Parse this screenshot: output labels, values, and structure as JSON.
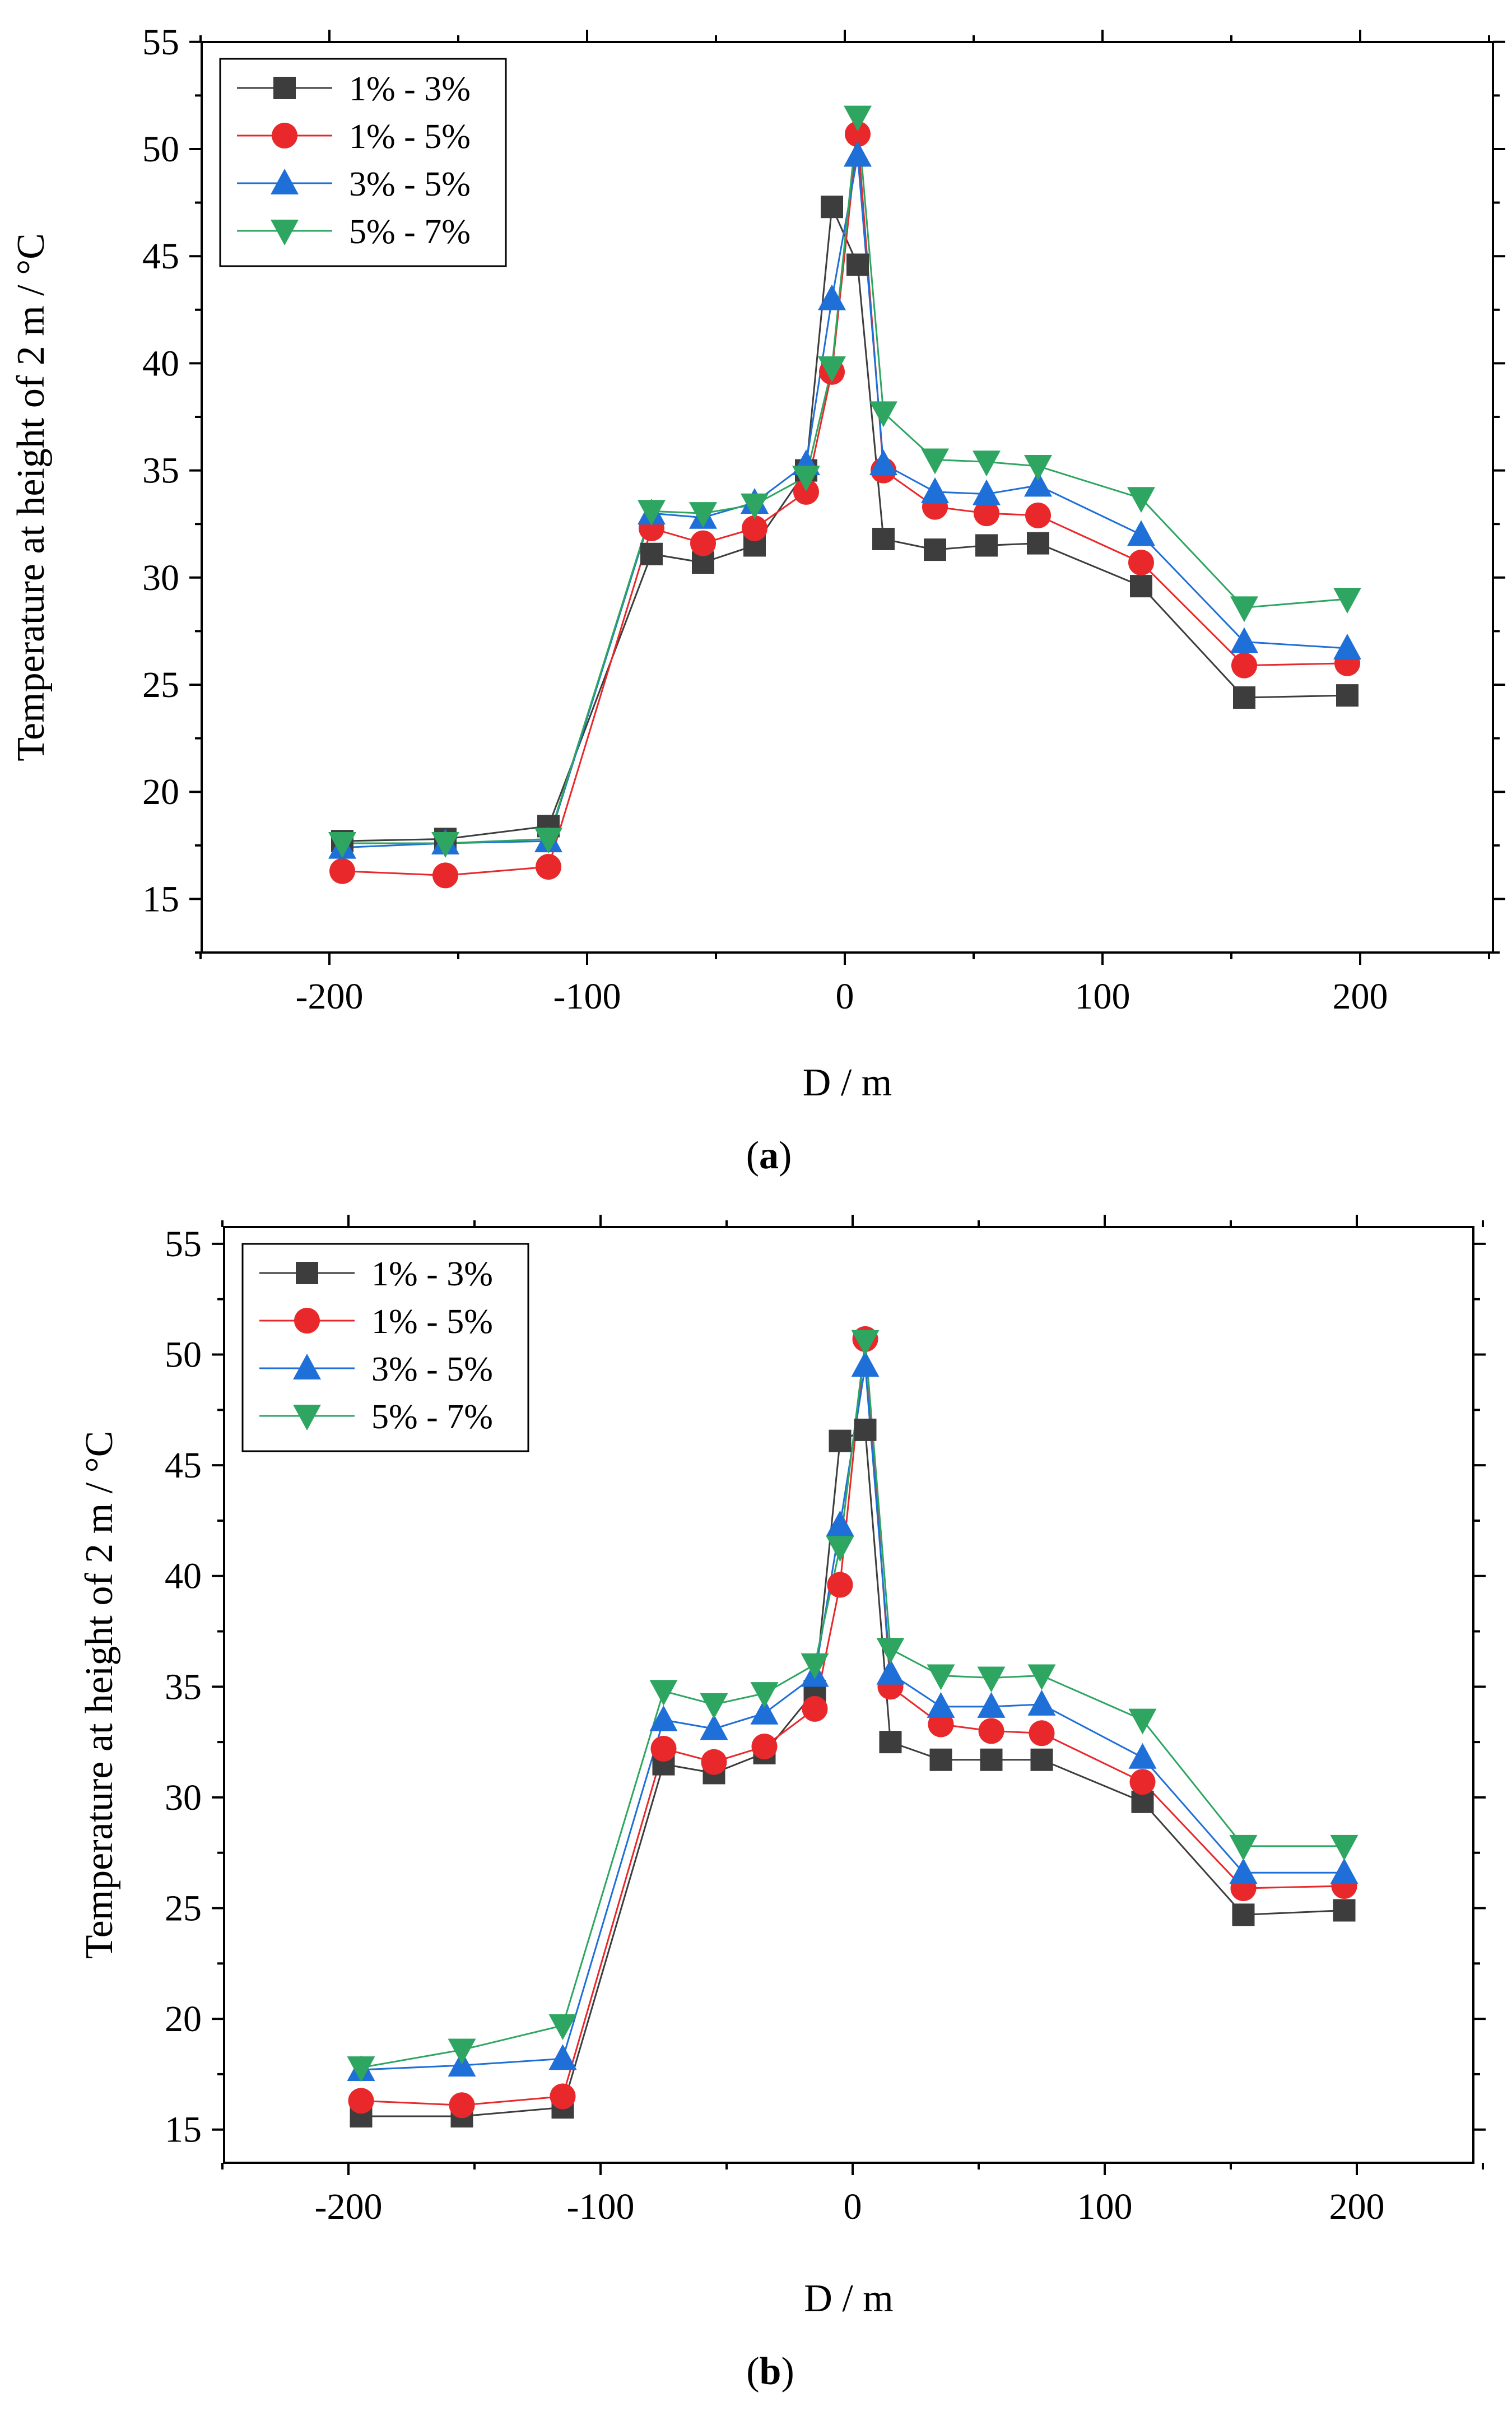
{
  "chart_data": [
    {
      "panel_label": "a",
      "type": "line",
      "title": "",
      "xlabel": "D / m",
      "ylabel": "Temperature at height of 2 m / °C",
      "xlim": [
        -250,
        250
      ],
      "ylim": [
        12.5,
        55
      ],
      "xticks": [
        "-200",
        "-100",
        "0",
        "100",
        "200"
      ],
      "yticks": [
        "15",
        "20",
        "25",
        "30",
        "35",
        "40",
        "45",
        "50",
        "55"
      ],
      "grid": false,
      "legend_position": "top-left",
      "x": [
        -195,
        -155,
        -115,
        -75,
        -55,
        -35,
        -15,
        -5,
        5,
        15,
        35,
        55,
        75,
        115,
        155,
        195
      ],
      "series": [
        {
          "name": "1% - 3%",
          "color": "#3d3d3d",
          "marker": "square",
          "values": [
            17.7,
            17.8,
            18.4,
            31.1,
            30.7,
            31.5,
            35.0,
            47.3,
            44.6,
            31.8,
            31.3,
            31.5,
            31.6,
            29.6,
            24.4,
            24.5
          ]
        },
        {
          "name": "1% - 5%",
          "color": "#e8282b",
          "marker": "circle",
          "values": [
            16.3,
            16.1,
            16.5,
            32.3,
            31.6,
            32.3,
            34.0,
            39.6,
            50.7,
            35.0,
            33.3,
            33.0,
            32.9,
            30.7,
            25.9,
            26.0
          ]
        },
        {
          "name": "3% - 5%",
          "color": "#1f6fd8",
          "marker": "triangle-up",
          "values": [
            17.4,
            17.6,
            17.7,
            33.0,
            32.8,
            33.5,
            35.3,
            43.0,
            49.7,
            35.3,
            34.0,
            33.9,
            34.3,
            32.0,
            27.0,
            26.7
          ]
        },
        {
          "name": "5% - 7%",
          "color": "#2ea661",
          "marker": "triangle-down",
          "values": [
            17.6,
            17.6,
            17.8,
            33.1,
            33.0,
            33.4,
            34.7,
            39.8,
            51.5,
            37.7,
            35.5,
            35.4,
            35.2,
            33.7,
            28.6,
            29.0
          ]
        }
      ]
    },
    {
      "panel_label": "b",
      "type": "line",
      "title": "",
      "xlabel": "D / m",
      "ylabel": "Temperature at height of 2 m / °C",
      "xlim": [
        -250,
        250
      ],
      "ylim": [
        13.5,
        55
      ],
      "xticks": [
        "-200",
        "-100",
        "0",
        "100",
        "200"
      ],
      "yticks": [
        "15",
        "20",
        "25",
        "30",
        "35",
        "40",
        "45",
        "50",
        "55"
      ],
      "grid": false,
      "legend_position": "top-left",
      "x": [
        -195,
        -155,
        -115,
        -75,
        -55,
        -35,
        -15,
        -5,
        5,
        15,
        35,
        55,
        75,
        115,
        155,
        195
      ],
      "series": [
        {
          "name": "1% - 3%",
          "color": "#3d3d3d",
          "marker": "square",
          "values": [
            15.6,
            15.6,
            16.0,
            31.5,
            31.1,
            32.0,
            34.8,
            46.1,
            46.6,
            32.5,
            31.7,
            31.7,
            31.7,
            29.8,
            24.7,
            24.9
          ]
        },
        {
          "name": "1% - 5%",
          "color": "#e8282b",
          "marker": "circle",
          "values": [
            16.3,
            16.1,
            16.5,
            32.2,
            31.6,
            32.3,
            34.0,
            39.6,
            50.7,
            35.0,
            33.3,
            33.0,
            32.9,
            30.7,
            25.9,
            26.0
          ]
        },
        {
          "name": "3% - 5%",
          "color": "#1f6fd8",
          "marker": "triangle-up",
          "values": [
            17.7,
            17.9,
            18.2,
            33.5,
            33.1,
            33.8,
            35.5,
            42.3,
            49.5,
            35.6,
            34.1,
            34.1,
            34.2,
            31.8,
            26.6,
            26.6
          ]
        },
        {
          "name": "5% - 7%",
          "color": "#2ea661",
          "marker": "triangle-down",
          "values": [
            17.8,
            18.6,
            19.7,
            34.8,
            34.2,
            34.7,
            36.0,
            41.3,
            50.6,
            36.7,
            35.5,
            35.4,
            35.5,
            33.5,
            27.8,
            27.8
          ]
        }
      ]
    }
  ]
}
